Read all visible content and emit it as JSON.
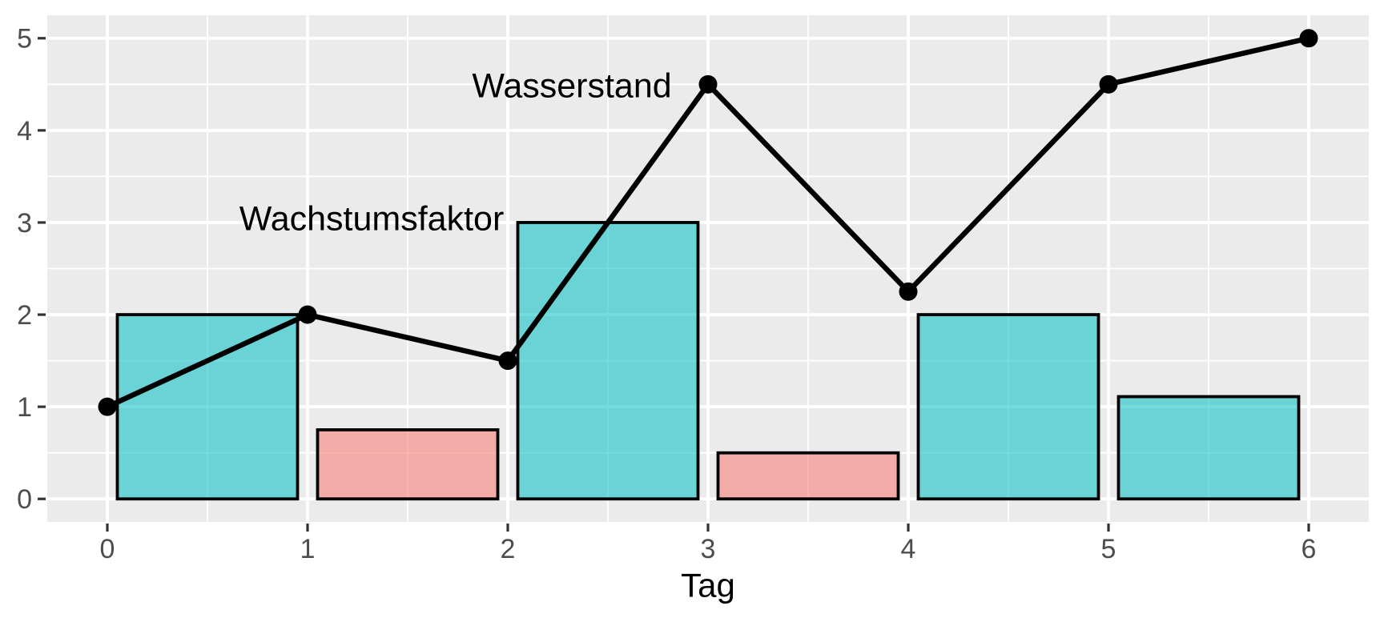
{
  "chart_data": {
    "type": "combo-bar-line",
    "title": "",
    "xlabel": "Tag",
    "ylabel": "",
    "xlim": [
      -0.3,
      6.3
    ],
    "ylim": [
      -0.25,
      5.25
    ],
    "x_ticks": [
      0,
      1,
      2,
      3,
      4,
      5,
      6
    ],
    "x_tick_labels": [
      "0",
      "1",
      "2",
      "3",
      "4",
      "5",
      "6"
    ],
    "y_ticks": [
      0,
      1,
      2,
      3,
      4,
      5
    ],
    "y_tick_labels": [
      "0",
      "1",
      "2",
      "3",
      "4",
      "5"
    ],
    "grid": "major and minor white gridlines on grey panel",
    "legend_position": "none (direct text annotations)",
    "series": [
      {
        "name": "Wachstumsfaktor",
        "type": "bar",
        "bar_width": 0.9,
        "x_start": [
          0,
          1,
          2,
          3,
          4,
          5
        ],
        "values": [
          2,
          0.75,
          3,
          0.5,
          2,
          1.11
        ],
        "fill_keys": [
          "up",
          "down",
          "up",
          "down",
          "up",
          "up"
        ]
      },
      {
        "name": "Wasserstand",
        "type": "line-with-points",
        "x": [
          0,
          1,
          2,
          3,
          4,
          5,
          6
        ],
        "values": [
          1,
          2,
          1.5,
          4.5,
          2.25,
          4.5,
          5
        ]
      }
    ],
    "annotations": [
      {
        "text": "Wasserstand",
        "x": 2.32,
        "y": 4.49
      },
      {
        "text": "Wachstumsfaktor",
        "x": 1.32,
        "y": 3.05
      }
    ]
  },
  "style": {
    "page_bg": "#FFFFFF",
    "panel_bg": "#EBEBEB",
    "grid_color": "#FFFFFF",
    "bar_fill_up": "#00BFC4",
    "bar_fill_down": "#F8766D",
    "bar_fill_opacity": 0.55,
    "bar_stroke": "#000000",
    "line_color": "#000000",
    "point_color": "#000000",
    "annotation_color": "#000000",
    "axis_text_color": "#4D4D4D",
    "tick_mark_color": "#333333",
    "axis_title_color": "#000000"
  }
}
